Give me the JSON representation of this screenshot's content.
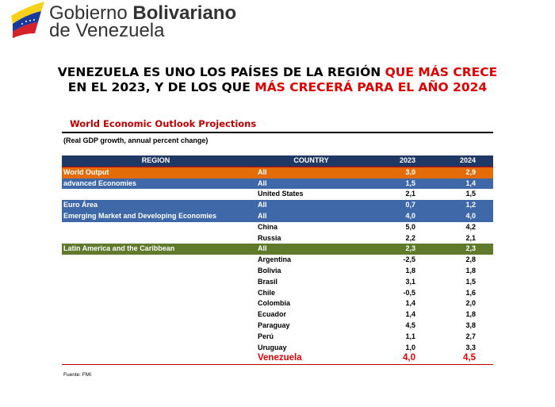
{
  "header": {
    "line1_normal": "Gobierno",
    "line1_bold": "Bolivariano",
    "line2": "de Venezuela"
  },
  "headline": [
    {
      "text": "VENEZUELA ES UNO LOS PAÍSES DE LA REGIÓN ",
      "color": "#000000"
    },
    {
      "text": "QUE MÁS CRECE",
      "color": "#e00000"
    },
    {
      "text": " EN EL 2023, Y DE LOS QUE ",
      "color": "#000000"
    },
    {
      "text": "MÁS CRECERÁ PARA EL AÑO 2024",
      "color": "#e00000"
    }
  ],
  "table": {
    "title": "World Economic Outlook Projections",
    "subtitle": "(Real GDP growth, annual percent change)",
    "columns": [
      "REGION",
      "COUNTRY",
      "2023",
      "2024"
    ],
    "rows": [
      {
        "region": "World Output",
        "country": "All",
        "y2023": "3,0",
        "y2024": "2,9",
        "highlight": "#e36c09"
      },
      {
        "region": "advanced Economies",
        "country": "All",
        "y2023": "1,5",
        "y2024": "1,4",
        "highlight": "#3f68a8"
      },
      {
        "country": "United States",
        "y2023": "2,1",
        "y2024": "1,5"
      },
      {
        "region": "Euro Área",
        "country": "All",
        "y2023": "0,7",
        "y2024": "1,2",
        "highlight": "#3f68a8"
      },
      {
        "region": "Emerging Market and Developing Economies",
        "country": "All",
        "y2023": "4,0",
        "y2024": "4,0",
        "highlight": "#3f68a8"
      },
      {
        "country": "China",
        "y2023": "5,0",
        "y2024": "4,2"
      },
      {
        "country": "Russia",
        "y2023": "2,2",
        "y2024": "2,1"
      },
      {
        "region": "Latin America and the Caribbean",
        "country": "All",
        "y2023": "2,3",
        "y2024": "2,3",
        "highlight": "#5f7a2b"
      },
      {
        "country": "Argentina",
        "y2023": "-2,5",
        "y2024": "2,8"
      },
      {
        "country": "Bolivia",
        "y2023": "1,8",
        "y2024": "1,8"
      },
      {
        "country": "Brasil",
        "y2023": "3,1",
        "y2024": "1,5"
      },
      {
        "country": "Chile",
        "y2023": "-0,5",
        "y2024": "1,6"
      },
      {
        "country": "Colombia",
        "y2023": "1,4",
        "y2024": "2,0"
      },
      {
        "country": "Ecuador",
        "y2023": "1,4",
        "y2024": "1,8"
      },
      {
        "country": "Paraguay",
        "y2023": "4,5",
        "y2024": "3,8"
      },
      {
        "country": "Perú",
        "y2023": "1,1",
        "y2024": "2,7"
      },
      {
        "country": "Uruguay",
        "y2023": "1,0",
        "y2024": "3,3"
      },
      {
        "country": "Venezuela",
        "y2023": "4,0",
        "y2024": "4,5",
        "text_color": "#e00000"
      }
    ],
    "source": "Fuente: FMI"
  }
}
